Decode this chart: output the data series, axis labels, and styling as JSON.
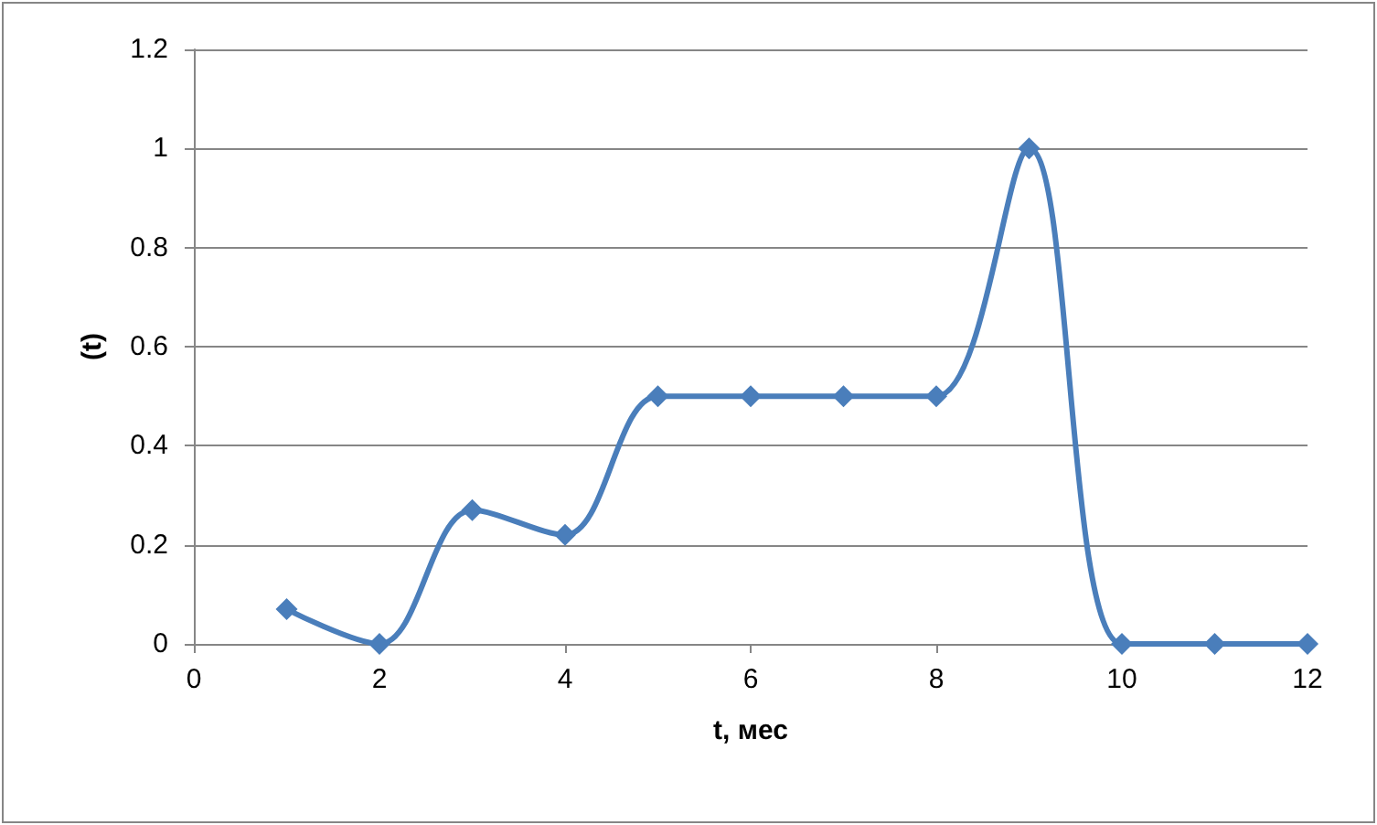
{
  "chart_data": {
    "type": "line",
    "xlabel": "t, мес",
    "ylabel": "(t)",
    "x": [
      1,
      2,
      3,
      4,
      5,
      6,
      7,
      8,
      9,
      10,
      11,
      12
    ],
    "series": [
      {
        "color": "#4a7ebb",
        "values": [
          0.07,
          0,
          0.27,
          0.22,
          0.5,
          0.5,
          0.5,
          0.5,
          1,
          0,
          0,
          0
        ]
      }
    ],
    "xlim": [
      0,
      12
    ],
    "xticks": [
      0,
      2,
      4,
      6,
      8,
      10,
      12
    ],
    "ylim": [
      0,
      1.2
    ],
    "yticks": [
      0,
      0.2,
      0.4,
      0.6,
      0.8,
      1,
      1.2
    ],
    "grid": "y",
    "marker": "diamond",
    "line_style": "solid"
  }
}
